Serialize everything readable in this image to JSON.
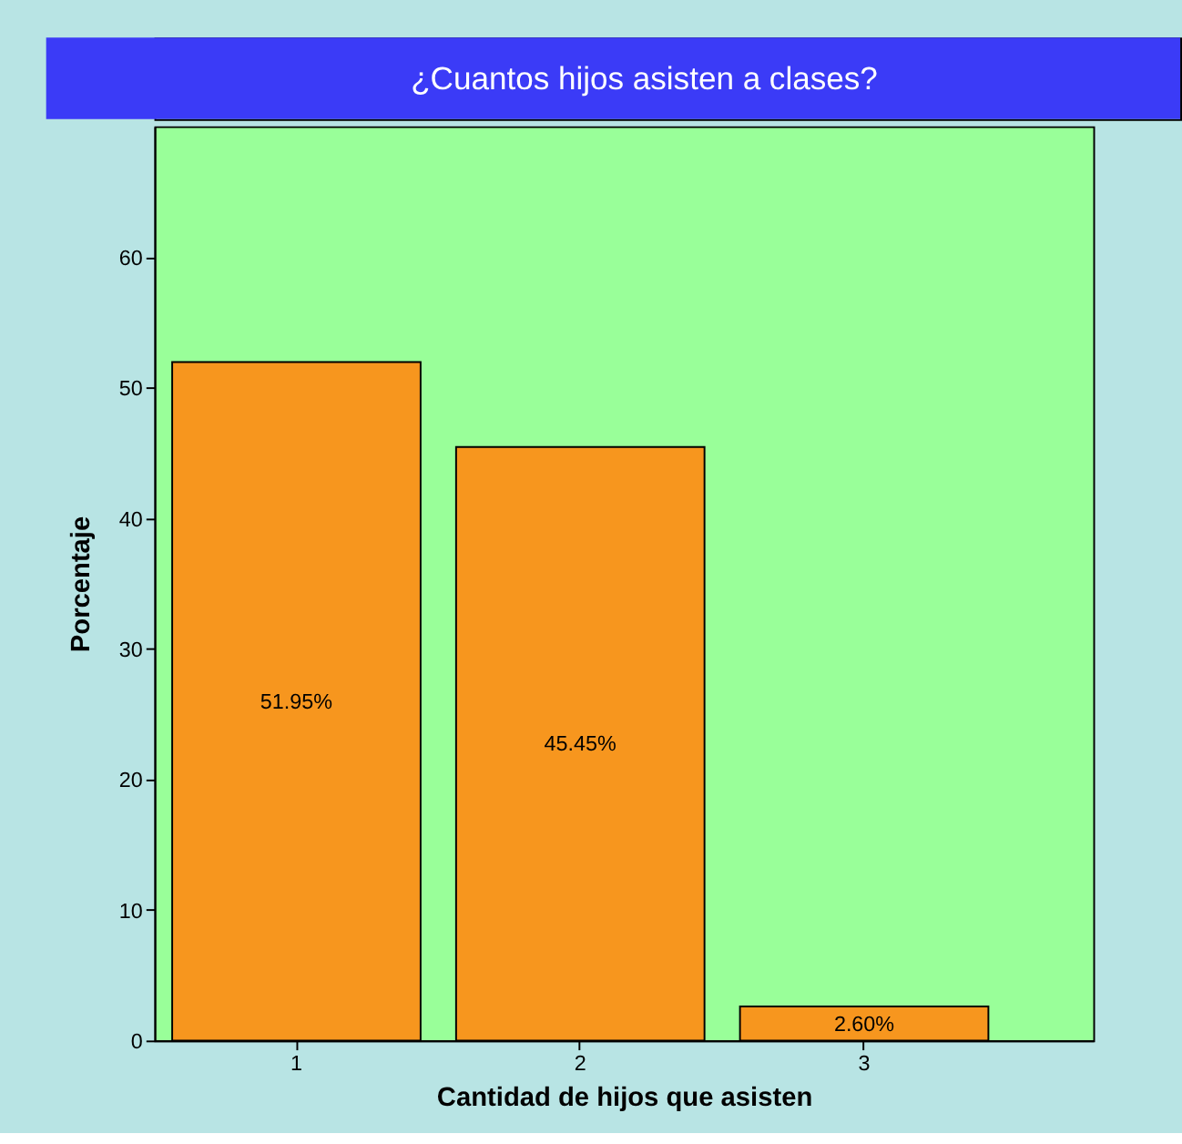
{
  "chart_data": {
    "type": "bar",
    "title": "¿Cuantos hijos asisten a clases?",
    "xlabel": "Cantidad de hijos que asisten",
    "ylabel": "Porcentaje",
    "categories": [
      "1",
      "2",
      "3"
    ],
    "values": [
      51.95,
      45.45,
      2.6
    ],
    "value_labels": [
      "51.95%",
      "45.45%",
      "2.60%"
    ],
    "color": "#f7961e",
    "ylim": [
      0,
      70
    ],
    "yticks": [
      0,
      10,
      20,
      30,
      40,
      50,
      60
    ],
    "grid": false
  }
}
